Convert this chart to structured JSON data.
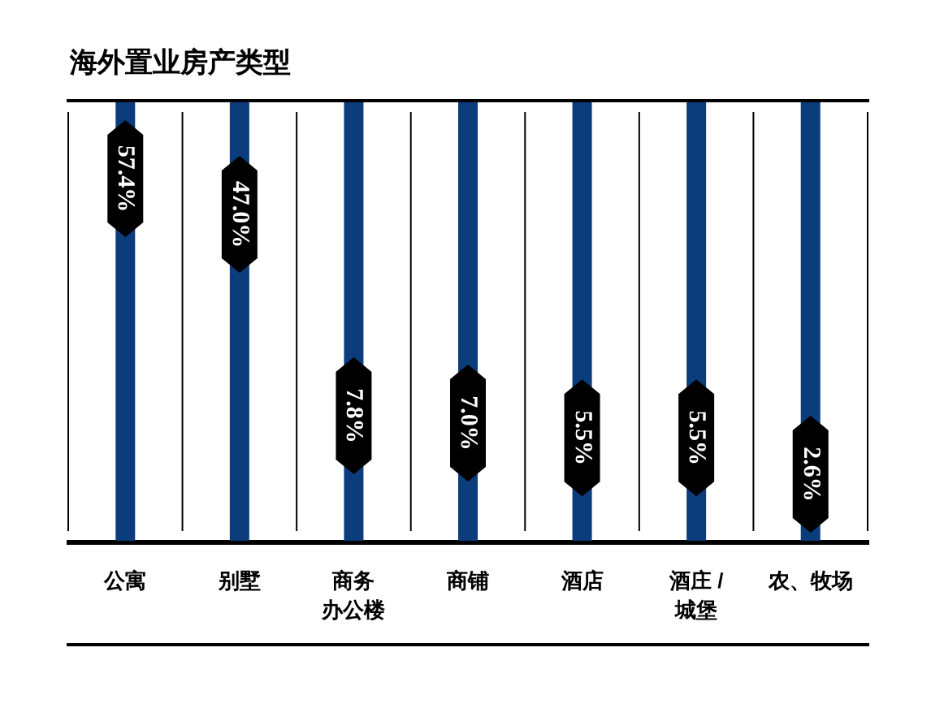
{
  "chart_data": {
    "type": "other",
    "title": "海外置业房产类型",
    "categories": [
      "公寓",
      "别墅",
      "商务办公楼",
      "商铺",
      "酒店",
      "酒庄 / 城堡",
      "农、牧场"
    ],
    "values": [
      57.4,
      47.0,
      7.8,
      7.0,
      5.5,
      5.5,
      2.6
    ],
    "color": "#000000",
    "value_labels": [
      "57.4%",
      "47.0%",
      "7.8%",
      "7.0%",
      "5.5%",
      "5.5%",
      "2.6%"
    ]
  }
}
